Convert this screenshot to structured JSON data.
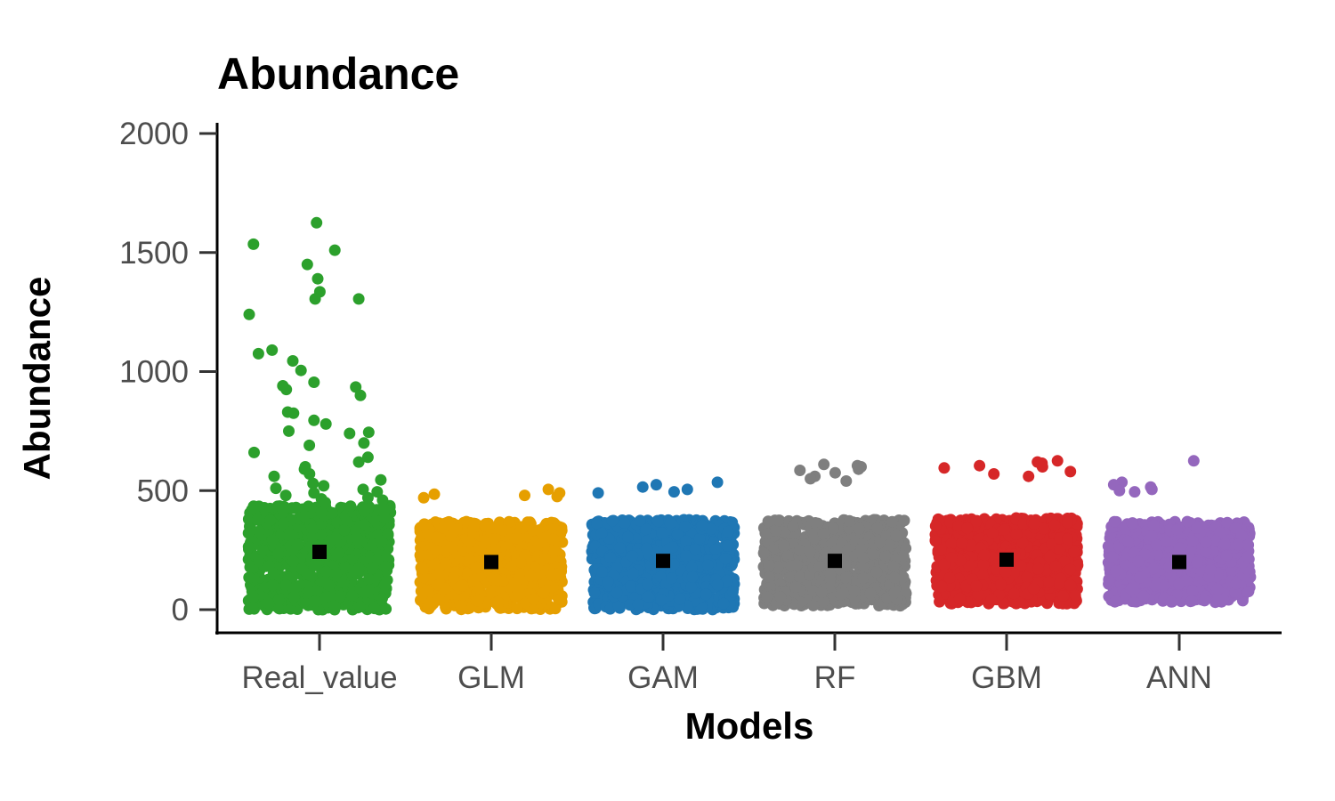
{
  "chart_data": {
    "type": "scatter",
    "title": "Abundance",
    "xlabel": "Models",
    "ylabel": "Abundance",
    "categories": [
      "Real_value",
      "GLM",
      "GAM",
      "RF",
      "GBM",
      "ANN"
    ],
    "yticks": [
      "0",
      "500",
      "1000",
      "1500",
      "2000"
    ],
    "ylim": [
      -80,
      2020
    ],
    "grid": false,
    "legend": "none",
    "point_counts_per_category": 1000,
    "series": [
      {
        "category": "Real_value",
        "color": "#2ca02c",
        "mean": 243,
        "range": [
          0,
          1625
        ],
        "outliers": [
          1625,
          1535,
          1510,
          1450,
          1390,
          1335,
          1305,
          1305,
          1240,
          1090,
          1075,
          1045,
          1005,
          955,
          940,
          935,
          925,
          900,
          830,
          825,
          795,
          780,
          750,
          745,
          740,
          700,
          690,
          660,
          640,
          620,
          600,
          590,
          570,
          560,
          545,
          530,
          520,
          510,
          505,
          495,
          490,
          480,
          470,
          465,
          460,
          450
        ]
      },
      {
        "category": "GLM",
        "color": "#e69f00",
        "mean": 200,
        "range": [
          0,
          505
        ],
        "outliers": [
          505,
          490,
          485,
          480,
          475,
          470
        ]
      },
      {
        "category": "GAM",
        "color": "#1f77b4",
        "mean": 205,
        "range": [
          0,
          535
        ],
        "outliers": [
          535,
          525,
          515,
          505,
          495,
          490
        ]
      },
      {
        "category": "RF",
        "color": "#7f7f7f",
        "mean": 205,
        "range": [
          15,
          610
        ],
        "outliers": [
          610,
          605,
          600,
          590,
          585,
          575,
          560,
          550,
          540
        ]
      },
      {
        "category": "GBM",
        "color": "#d62728",
        "mean": 210,
        "range": [
          25,
          625
        ],
        "outliers": [
          625,
          620,
          615,
          605,
          600,
          595,
          580,
          570,
          560
        ]
      },
      {
        "category": "ANN",
        "color": "#9467bd",
        "mean": 200,
        "range": [
          30,
          625
        ],
        "outliers": [
          625,
          535,
          525,
          515,
          505,
          500,
          495
        ]
      }
    ],
    "mean_marker_color": "#000000"
  }
}
